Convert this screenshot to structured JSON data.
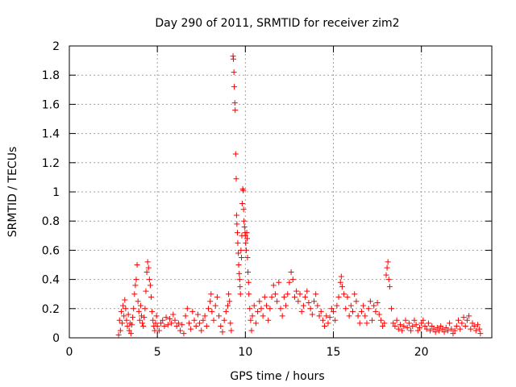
{
  "chart_data": {
    "type": "scatter",
    "title": "Day 290 of 2011, SRMTID for receiver zim2",
    "xlabel": "GPS time / hours",
    "ylabel": "SRMTID / TECUs",
    "xlim": [
      0,
      24
    ],
    "ylim": [
      0,
      2
    ],
    "x_ticks": [
      0,
      5,
      10,
      15,
      20
    ],
    "x_tick_labels": [
      "0",
      "5",
      "10",
      "15",
      "20"
    ],
    "y_ticks": [
      0,
      0.2,
      0.4,
      0.6,
      0.8,
      1,
      1.2,
      1.4,
      1.6,
      1.8,
      2
    ],
    "y_tick_labels": [
      "0",
      "0.2",
      "0.4",
      "0.6",
      "0.8",
      "1",
      "1.2",
      "1.4",
      "1.6",
      "1.8",
      "2"
    ],
    "grid": true,
    "marker": "+",
    "color": "#ff0000",
    "series": [
      {
        "name": "SRMTID",
        "points": [
          [
            2.8,
            0.02
          ],
          [
            2.85,
            0.12
          ],
          [
            2.9,
            0.05
          ],
          [
            2.95,
            0.18
          ],
          [
            3.0,
            0.1
          ],
          [
            3.05,
            0.22
          ],
          [
            3.1,
            0.15
          ],
          [
            3.15,
            0.26
          ],
          [
            3.2,
            0.2
          ],
          [
            3.25,
            0.12
          ],
          [
            3.3,
            0.08
          ],
          [
            3.35,
            0.16
          ],
          [
            3.4,
            0.05
          ],
          [
            3.45,
            0.1
          ],
          [
            3.5,
            0.03
          ],
          [
            3.55,
            0.09
          ],
          [
            3.6,
            0.14
          ],
          [
            3.65,
            0.2
          ],
          [
            3.7,
            0.3
          ],
          [
            3.75,
            0.36
          ],
          [
            3.8,
            0.4
          ],
          [
            3.85,
            0.5
          ],
          [
            3.9,
            0.25
          ],
          [
            3.95,
            0.18
          ],
          [
            4.0,
            0.12
          ],
          [
            4.05,
            0.22
          ],
          [
            4.1,
            0.15
          ],
          [
            4.15,
            0.1
          ],
          [
            4.2,
            0.08
          ],
          [
            4.25,
            0.14
          ],
          [
            4.3,
            0.2
          ],
          [
            4.35,
            0.32
          ],
          [
            4.4,
            0.45
          ],
          [
            4.45,
            0.52
          ],
          [
            4.5,
            0.48
          ],
          [
            4.55,
            0.4
          ],
          [
            4.6,
            0.36
          ],
          [
            4.65,
            0.28
          ],
          [
            4.7,
            0.18
          ],
          [
            4.75,
            0.12
          ],
          [
            4.8,
            0.08
          ],
          [
            4.85,
            0.05
          ],
          [
            4.9,
            0.1
          ],
          [
            4.95,
            0.15
          ],
          [
            5.0,
            0.08
          ],
          [
            5.1,
            0.05
          ],
          [
            5.2,
            0.1
          ],
          [
            5.3,
            0.12
          ],
          [
            5.4,
            0.08
          ],
          [
            5.5,
            0.14
          ],
          [
            5.6,
            0.09
          ],
          [
            5.7,
            0.13
          ],
          [
            5.8,
            0.1
          ],
          [
            5.9,
            0.16
          ],
          [
            6.0,
            0.12
          ],
          [
            6.1,
            0.08
          ],
          [
            6.2,
            0.1
          ],
          [
            6.3,
            0.05
          ],
          [
            6.4,
            0.09
          ],
          [
            6.5,
            0.03
          ],
          [
            6.6,
            0.15
          ],
          [
            6.7,
            0.2
          ],
          [
            6.8,
            0.1
          ],
          [
            6.9,
            0.06
          ],
          [
            7.0,
            0.18
          ],
          [
            7.1,
            0.12
          ],
          [
            7.2,
            0.08
          ],
          [
            7.3,
            0.16
          ],
          [
            7.4,
            0.1
          ],
          [
            7.5,
            0.05
          ],
          [
            7.6,
            0.12
          ],
          [
            7.7,
            0.15
          ],
          [
            7.8,
            0.08
          ],
          [
            7.9,
            0.2
          ],
          [
            8.0,
            0.25
          ],
          [
            8.05,
            0.3
          ],
          [
            8.1,
            0.18
          ],
          [
            8.2,
            0.12
          ],
          [
            8.3,
            0.22
          ],
          [
            8.4,
            0.28
          ],
          [
            8.5,
            0.15
          ],
          [
            8.6,
            0.08
          ],
          [
            8.7,
            0.04
          ],
          [
            8.8,
            0.12
          ],
          [
            8.9,
            0.18
          ],
          [
            9.0,
            0.22
          ],
          [
            9.05,
            0.3
          ],
          [
            9.1,
            0.25
          ],
          [
            9.15,
            0.1
          ],
          [
            9.2,
            0.05
          ],
          [
            9.3,
            1.93
          ],
          [
            9.32,
            1.91
          ],
          [
            9.35,
            1.82
          ],
          [
            9.37,
            1.72
          ],
          [
            9.4,
            1.61
          ],
          [
            9.42,
            1.56
          ],
          [
            9.45,
            1.26
          ],
          [
            9.48,
            1.09
          ],
          [
            9.5,
            0.84
          ],
          [
            9.52,
            0.78
          ],
          [
            9.55,
            0.72
          ],
          [
            9.57,
            0.65
          ],
          [
            9.6,
            0.58
          ],
          [
            9.62,
            0.5
          ],
          [
            9.65,
            0.44
          ],
          [
            9.68,
            0.4
          ],
          [
            9.7,
            0.35
          ],
          [
            9.72,
            0.3
          ],
          [
            9.75,
            0.6
          ],
          [
            9.78,
            0.55
          ],
          [
            9.8,
            0.7
          ],
          [
            9.82,
            0.92
          ],
          [
            9.85,
            1.02
          ],
          [
            9.88,
            1.01
          ],
          [
            9.9,
            0.88
          ],
          [
            9.92,
            0.8
          ],
          [
            9.95,
            0.76
          ],
          [
            9.98,
            0.72
          ],
          [
            10.0,
            0.7
          ],
          [
            10.02,
            0.65
          ],
          [
            10.05,
            0.6
          ],
          [
            10.08,
            0.72
          ],
          [
            10.1,
            0.68
          ],
          [
            10.12,
            0.55
          ],
          [
            10.15,
            0.45
          ],
          [
            10.18,
            0.38
          ],
          [
            10.2,
            0.3
          ],
          [
            10.25,
            0.2
          ],
          [
            10.3,
            0.12
          ],
          [
            10.35,
            0.05
          ],
          [
            10.4,
            0.15
          ],
          [
            10.5,
            0.22
          ],
          [
            10.6,
            0.1
          ],
          [
            10.7,
            0.18
          ],
          [
            10.8,
            0.25
          ],
          [
            10.9,
            0.2
          ],
          [
            11.0,
            0.15
          ],
          [
            11.1,
            0.28
          ],
          [
            11.2,
            0.22
          ],
          [
            11.3,
            0.12
          ],
          [
            11.4,
            0.2
          ],
          [
            11.5,
            0.28
          ],
          [
            11.6,
            0.36
          ],
          [
            11.7,
            0.3
          ],
          [
            11.8,
            0.25
          ],
          [
            11.9,
            0.38
          ],
          [
            12.0,
            0.2
          ],
          [
            12.1,
            0.15
          ],
          [
            12.2,
            0.28
          ],
          [
            12.3,
            0.22
          ],
          [
            12.4,
            0.3
          ],
          [
            12.5,
            0.38
          ],
          [
            12.6,
            0.45
          ],
          [
            12.7,
            0.4
          ],
          [
            12.8,
            0.28
          ],
          [
            12.9,
            0.32
          ],
          [
            13.0,
            0.25
          ],
          [
            13.1,
            0.3
          ],
          [
            13.2,
            0.18
          ],
          [
            13.3,
            0.22
          ],
          [
            13.4,
            0.28
          ],
          [
            13.5,
            0.32
          ],
          [
            13.6,
            0.24
          ],
          [
            13.7,
            0.2
          ],
          [
            13.8,
            0.16
          ],
          [
            13.9,
            0.25
          ],
          [
            14.0,
            0.3
          ],
          [
            14.1,
            0.22
          ],
          [
            14.2,
            0.15
          ],
          [
            14.3,
            0.18
          ],
          [
            14.4,
            0.12
          ],
          [
            14.5,
            0.08
          ],
          [
            14.6,
            0.15
          ],
          [
            14.7,
            0.1
          ],
          [
            14.8,
            0.14
          ],
          [
            14.9,
            0.2
          ],
          [
            15.0,
            0.18
          ],
          [
            15.1,
            0.12
          ],
          [
            15.2,
            0.22
          ],
          [
            15.3,
            0.28
          ],
          [
            15.4,
            0.38
          ],
          [
            15.45,
            0.42
          ],
          [
            15.5,
            0.35
          ],
          [
            15.6,
            0.3
          ],
          [
            15.7,
            0.2
          ],
          [
            15.8,
            0.28
          ],
          [
            15.9,
            0.15
          ],
          [
            16.0,
            0.22
          ],
          [
            16.1,
            0.18
          ],
          [
            16.2,
            0.3
          ],
          [
            16.3,
            0.25
          ],
          [
            16.4,
            0.15
          ],
          [
            16.5,
            0.1
          ],
          [
            16.6,
            0.18
          ],
          [
            16.7,
            0.22
          ],
          [
            16.8,
            0.15
          ],
          [
            16.9,
            0.1
          ],
          [
            17.0,
            0.2
          ],
          [
            17.1,
            0.25
          ],
          [
            17.2,
            0.12
          ],
          [
            17.3,
            0.22
          ],
          [
            17.4,
            0.18
          ],
          [
            17.5,
            0.24
          ],
          [
            17.6,
            0.16
          ],
          [
            17.7,
            0.12
          ],
          [
            17.8,
            0.08
          ],
          [
            17.9,
            0.1
          ],
          [
            18.0,
            0.43
          ],
          [
            18.05,
            0.48
          ],
          [
            18.1,
            0.52
          ],
          [
            18.15,
            0.4
          ],
          [
            18.2,
            0.35
          ],
          [
            18.3,
            0.2
          ],
          [
            18.4,
            0.1
          ],
          [
            18.5,
            0.08
          ],
          [
            18.6,
            0.12
          ],
          [
            18.7,
            0.06
          ],
          [
            18.8,
            0.09
          ],
          [
            18.9,
            0.05
          ],
          [
            19.0,
            0.08
          ],
          [
            19.1,
            0.12
          ],
          [
            19.2,
            0.07
          ],
          [
            19.3,
            0.1
          ],
          [
            19.4,
            0.05
          ],
          [
            19.5,
            0.08
          ],
          [
            19.6,
            0.12
          ],
          [
            19.7,
            0.09
          ],
          [
            19.8,
            0.05
          ],
          [
            19.9,
            0.07
          ],
          [
            20.0,
            0.1
          ],
          [
            20.1,
            0.12
          ],
          [
            20.2,
            0.08
          ],
          [
            20.3,
            0.06
          ],
          [
            20.4,
            0.1
          ],
          [
            20.5,
            0.05
          ],
          [
            20.6,
            0.08
          ],
          [
            20.7,
            0.06
          ],
          [
            20.8,
            0.04
          ],
          [
            20.9,
            0.07
          ],
          [
            21.0,
            0.05
          ],
          [
            21.1,
            0.08
          ],
          [
            21.2,
            0.06
          ],
          [
            21.3,
            0.04
          ],
          [
            21.4,
            0.07
          ],
          [
            21.5,
            0.05
          ],
          [
            21.6,
            0.1
          ],
          [
            21.7,
            0.06
          ],
          [
            21.8,
            0.03
          ],
          [
            21.9,
            0.05
          ],
          [
            22.0,
            0.08
          ],
          [
            22.1,
            0.12
          ],
          [
            22.2,
            0.06
          ],
          [
            22.3,
            0.1
          ],
          [
            22.4,
            0.14
          ],
          [
            22.5,
            0.08
          ],
          [
            22.6,
            0.12
          ],
          [
            22.7,
            0.15
          ],
          [
            22.8,
            0.06
          ],
          [
            22.9,
            0.1
          ],
          [
            23.0,
            0.08
          ],
          [
            23.1,
            0.05
          ],
          [
            23.2,
            0.09
          ],
          [
            23.3,
            0.06
          ],
          [
            23.35,
            0.03
          ]
        ]
      }
    ]
  }
}
